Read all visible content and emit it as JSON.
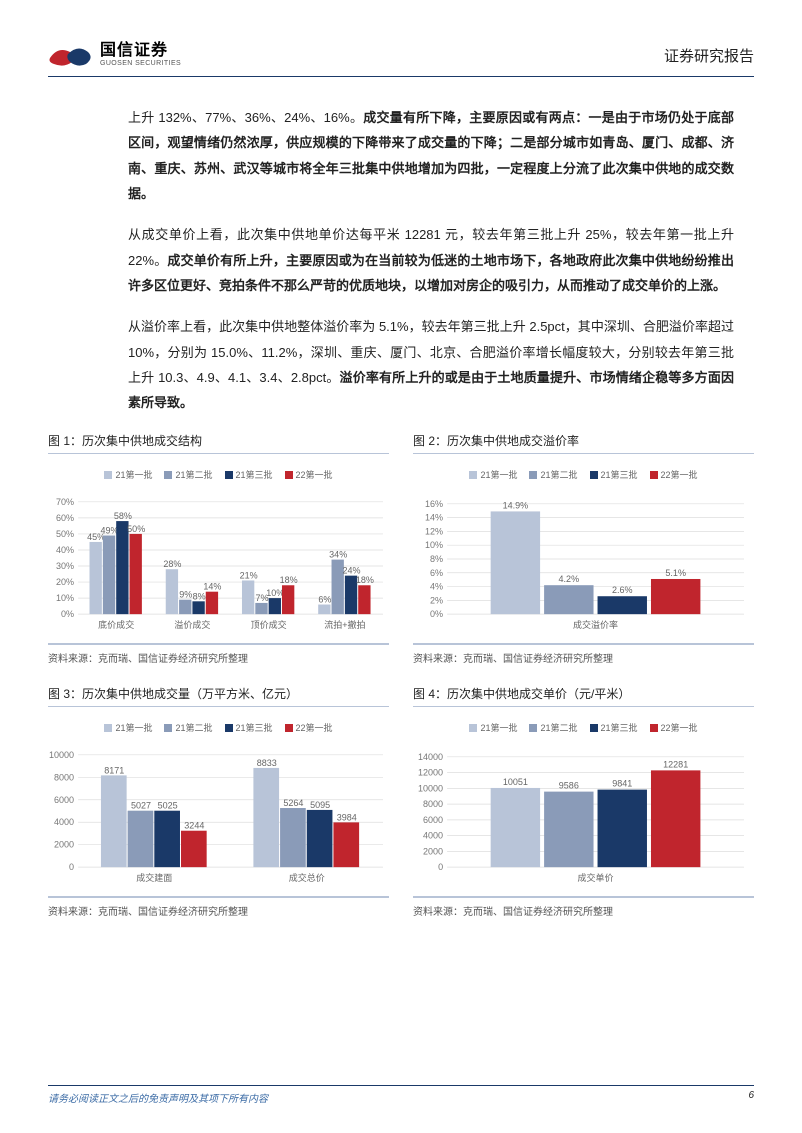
{
  "header": {
    "logo_cn": "国信证券",
    "logo_en": "GUOSEN SECURITIES",
    "logo_color_red": "#c0252d",
    "logo_color_blue": "#1a3968",
    "report_label": "证券研究报告"
  },
  "paragraphs": {
    "p1_lead": "上升 132%、77%、36%、24%、16%。",
    "p1_bold": "成交量有所下降，主要原因或有两点：一是由于市场仍处于底部区间，观望情绪仍然浓厚，供应规模的下降带来了成交量的下降；二是部分城市如青岛、厦门、成都、济南、重庆、苏州、武汉等城市将全年三批集中供地增加为四批，一定程度上分流了此次集中供地的成交数据。",
    "p2_lead": "从成交单价上看，此次集中供地单价达每平米 12281 元，较去年第三批上升 25%，较去年第一批上升 22%。",
    "p2_bold": "成交单价有所上升，主要原因或为在当前较为低迷的土地市场下，各地政府此次集中供地纷纷推出许多区位更好、竞拍条件不那么严苛的优质地块，以增加对房企的吸引力，从而推动了成交单价的上涨。",
    "p3_lead": "从溢价率上看，此次集中供地整体溢价率为 5.1%，较去年第三批上升 2.5pct，其中深圳、合肥溢价率超过 10%，分别为 15.0%、11.2%，深圳、重庆、厦门、北京、合肥溢价率增长幅度较大，分别较去年第三批上升 10.3、4.9、4.1、3.4、2.8pct。",
    "p3_bold": "溢价率有所上升的或是由于土地质量提升、市场情绪企稳等多方面因素所导致。"
  },
  "colors": {
    "series": [
      "#b8c4d8",
      "#8a9bb8",
      "#1a3968",
      "#c0252d"
    ],
    "grid": "#dddddd",
    "axis": "#bbbbbb",
    "divider": "#b8c4d8",
    "header_divider": "#1a3968"
  },
  "legend_labels": [
    "21第一批",
    "21第二批",
    "21第三批",
    "22第一批"
  ],
  "chart1": {
    "title": "图 1：历次集中供地成交结构",
    "type": "grouped-bar",
    "categories": [
      "底价成交",
      "溢价成交",
      "顶价成交",
      "流拍+撤拍"
    ],
    "series_values": [
      [
        45,
        49,
        58,
        50
      ],
      [
        28,
        9,
        8,
        14
      ],
      [
        21,
        7,
        10,
        18
      ],
      [
        6,
        34,
        24,
        18
      ]
    ],
    "value_labels": [
      [
        "45%",
        "49%",
        "58%",
        "50%"
      ],
      [
        "28%",
        "9%",
        "8%",
        "14%"
      ],
      [
        "21%",
        "7%",
        "10%",
        "18%"
      ],
      [
        "6%",
        "34%",
        "24%",
        "18%"
      ]
    ],
    "ylim": [
      0,
      70
    ],
    "ytick_step": 10,
    "ytick_suffix": "%",
    "source": "资料来源：克而瑞、国信证券经济研究所整理"
  },
  "chart2": {
    "title": "图 2：历次集中供地成交溢价率",
    "type": "single-group-bar",
    "category": "成交溢价率",
    "values": [
      14.9,
      4.2,
      2.6,
      5.1
    ],
    "value_labels": [
      "14.9%",
      "4.2%",
      "2.6%",
      "5.1%"
    ],
    "ylim": [
      0,
      16
    ],
    "ytick_step": 2,
    "ytick_suffix": "%",
    "source": "资料来源：克而瑞、国信证券经济研究所整理"
  },
  "chart3": {
    "title": "图 3：历次集中供地成交量（万平方米、亿元）",
    "type": "grouped-bar",
    "categories": [
      "成交建面",
      "成交总价"
    ],
    "series_values": [
      [
        8171,
        5027,
        5025,
        3244
      ],
      [
        8833,
        5264,
        5095,
        3984
      ]
    ],
    "value_labels": [
      [
        "8171",
        "5027",
        "5025",
        "3244"
      ],
      [
        "8833",
        "5264",
        "5095",
        "3984"
      ]
    ],
    "ylim": [
      0,
      10000
    ],
    "ytick_step": 2000,
    "ytick_suffix": "",
    "source": "资料来源：克而瑞、国信证券经济研究所整理"
  },
  "chart4": {
    "title": "图 4：历次集中供地成交单价（元/平米）",
    "type": "single-group-bar",
    "category": "成交单价",
    "values": [
      10051,
      9586,
      9841,
      12281
    ],
    "value_labels": [
      "10051",
      "9586",
      "9841",
      "12281"
    ],
    "ylim": [
      0,
      14000
    ],
    "ytick_step": 2000,
    "ytick_suffix": "",
    "source": "资料来源：克而瑞、国信证券经济研究所整理"
  },
  "footer": {
    "note": "请务必阅读正文之后的免责声明及其项下所有内容",
    "page": "6"
  }
}
